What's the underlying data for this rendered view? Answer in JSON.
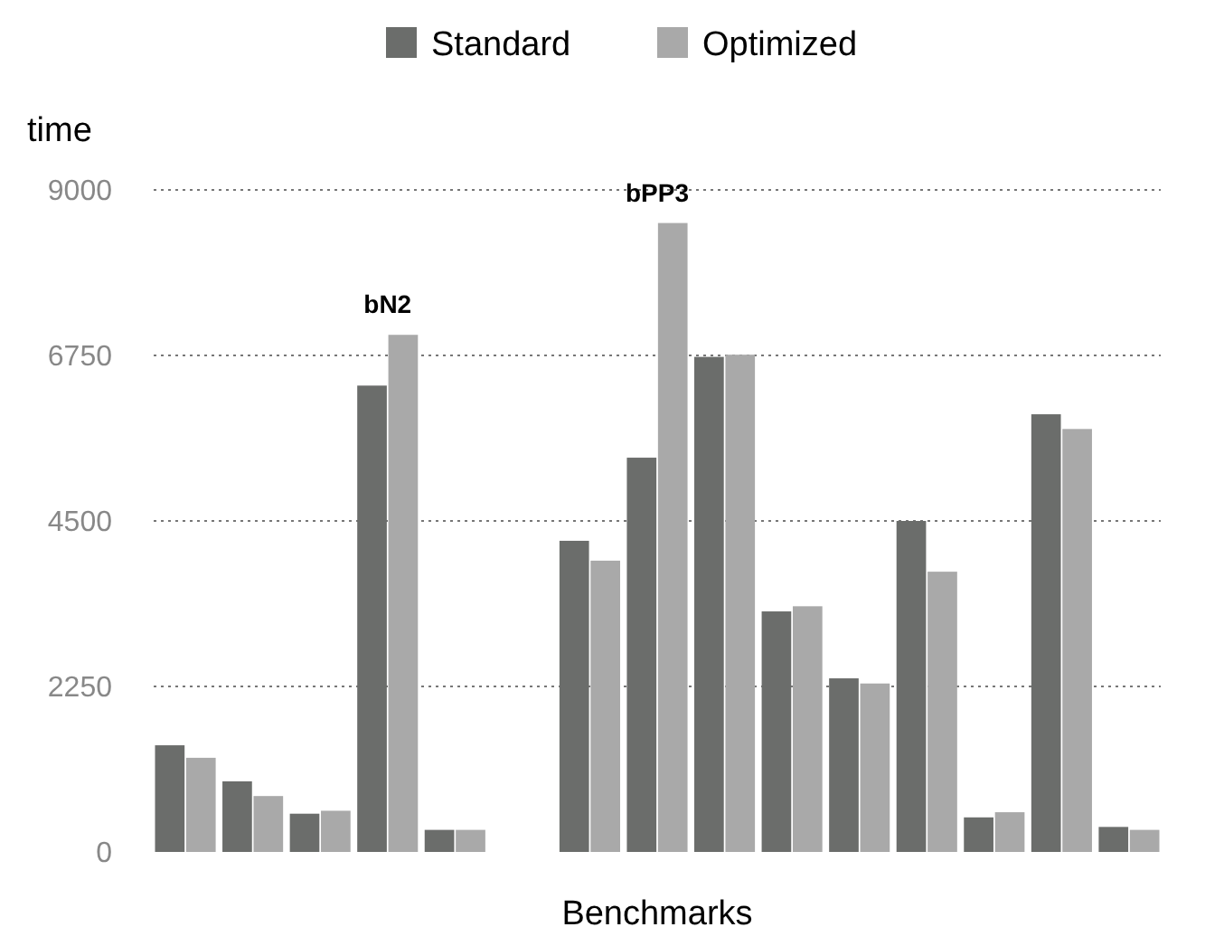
{
  "chart_data": {
    "type": "bar",
    "xlabel": "Benchmarks",
    "ylabel": "time",
    "categories": [
      null,
      null,
      null,
      "bN2",
      null,
      null,
      null,
      "bPP3",
      null,
      null,
      null,
      null,
      null,
      null,
      null
    ],
    "series": [
      {
        "name": "Standard",
        "color": "#6b6d6b",
        "values": [
          1450,
          960,
          520,
          6340,
          300,
          null,
          4230,
          5360,
          6730,
          3270,
          2360,
          4500,
          470,
          5950,
          340
        ]
      },
      {
        "name": "Optimized",
        "color": "#a9a9a9",
        "values": [
          1280,
          760,
          560,
          7030,
          300,
          null,
          3960,
          8550,
          6760,
          3340,
          2290,
          3810,
          540,
          5750,
          300
        ]
      }
    ],
    "ylim": [
      0,
      9000
    ],
    "yticks": [
      0,
      2250,
      4500,
      6750,
      9000
    ],
    "grid": "y",
    "line_style": "dotted",
    "legend": "top"
  }
}
